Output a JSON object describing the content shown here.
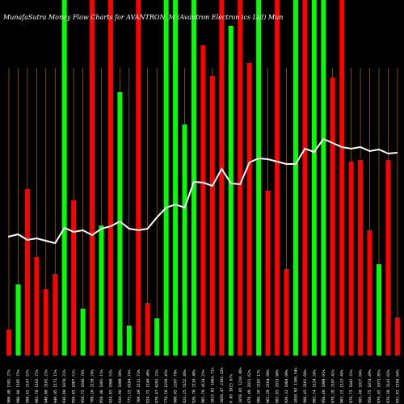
{
  "title": "MunafaSutra  Money Flow  Charts for AVANTRON_M                          (Avantron   Electron                                ics Ltd) Mun",
  "colors": {
    "background": "#000000",
    "up": "#00ff00",
    "down": "#ff0000",
    "line": "#ffffff",
    "grid": "#c87800"
  },
  "chart_data": {
    "type": "bar",
    "ylim": [
      0,
      440
    ],
    "grid": true,
    "categories": [
      "900.40 1391.27%",
      "996.90 1195.75%",
      "899.65 2147.57%",
      "985.70 1102.75%",
      "940.90 3101.23%",
      "940.05 1171.15%",
      "930.80 1070.22%",
      "958.85 1087.51%",
      "958.75 1046.78%",
      "709.10 2150.24%",
      "959.46 1001.11%",
      "924.85 2006.53%",
      "934.90 1099.06%",
      "775.15 6164.74%",
      "769.40 1111.73%",
      "824.75 1140.40%",
      "870.47 6201.21%",
      "778.50 1250.45%",
      "909.05 2207.79%",
      "823.25 5152.46%",
      "926.70 2110.40%",
      "985.79 4134.25%",
      "1022.82 1064.71%",
      "1056.47 2102.42%",
      "0.00 1023.67%",
      "1058.05 1210.46%",
      "878.49 2021.62%",
      "886.30 2102.17%",
      "965.39 2164.00%",
      "903.85 2013.90%",
      "920.32 1084.09%",
      "1010.93 1106.54%",
      "906.45 3161.66%",
      "903.74 1124.58%",
      "950.40 1009.01%",
      "978.29 2107.42%",
      "903.25 1123.40%",
      "976.75 1042.31%",
      "905.40 1027.04%",
      "950.75 1074.49%",
      "970.85 1071.85%",
      "970.38 3143.65%",
      "951.82 1194.64%"
    ],
    "series": [
      {
        "values": [
          32,
          88,
          206,
          122,
          82,
          101,
          440,
          192,
          58,
          440,
          161,
          440,
          326,
          37,
          440,
          65,
          46,
          440,
          440,
          286,
          440,
          384,
          346,
          440,
          408,
          440,
          362,
          440,
          204,
          440,
          107,
          440,
          440,
          440,
          440,
          344,
          440,
          240,
          242,
          155,
          113,
          242,
          47
        ],
        "colors": [
          "r",
          "g",
          "r",
          "r",
          "r",
          "r",
          "g",
          "r",
          "g",
          "r",
          "g",
          "r",
          "g",
          "g",
          "r",
          "r",
          "g",
          "g",
          "g",
          "g",
          "g",
          "r",
          "r",
          "r",
          "g",
          "r",
          "r",
          "g",
          "r",
          "r",
          "r",
          "g",
          "r",
          "g",
          "g",
          "r",
          "r",
          "r",
          "r",
          "r",
          "g",
          "r",
          "r"
        ]
      }
    ],
    "line": [
      147,
      150,
      143,
      145,
      142,
      139,
      158,
      153,
      155,
      149,
      157,
      160,
      166,
      157,
      155,
      157,
      171,
      183,
      187,
      183,
      215,
      214,
      210,
      231,
      213,
      212,
      239,
      244,
      243,
      240,
      237,
      237,
      256,
      252,
      268,
      263,
      258,
      256,
      258,
      253,
      255,
      250,
      251
    ]
  },
  "tooltip_marker": "0"
}
